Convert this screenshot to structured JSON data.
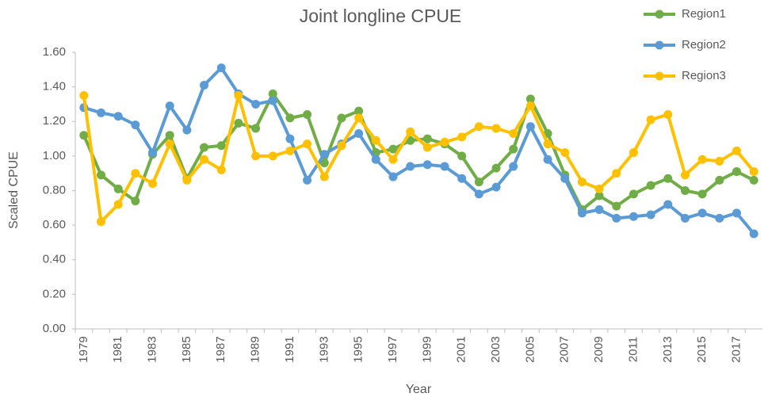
{
  "chart_data": {
    "type": "line",
    "title": "Joint longline CPUE",
    "x_label": "Year",
    "y_label": "Scaled CPUE",
    "categories": [
      "1979",
      null,
      "1981",
      null,
      "1983",
      null,
      "1985",
      null,
      "1987",
      null,
      "1989",
      null,
      "1991",
      null,
      "1993",
      null,
      "1995",
      null,
      "1997",
      null,
      "1999",
      null,
      "2001",
      null,
      "2003",
      null,
      "2005",
      null,
      "2007",
      null,
      "2009",
      null,
      "2011",
      null,
      "2013",
      null,
      "2015",
      null,
      "2017",
      null
    ],
    "series": [
      {
        "name": "Region1",
        "color": "#70ad47",
        "values": [
          1.12,
          0.89,
          0.81,
          0.74,
          1.01,
          1.12,
          0.87,
          1.05,
          1.06,
          1.19,
          1.16,
          1.36,
          1.22,
          1.24,
          0.96,
          1.22,
          1.26,
          1.02,
          1.04,
          1.09,
          1.1,
          1.07,
          1.0,
          0.85,
          0.93,
          1.04,
          1.33,
          1.13,
          0.89,
          0.69,
          0.77,
          0.71,
          0.78,
          0.83,
          0.87,
          0.8,
          0.78,
          0.86,
          0.91,
          0.86
        ]
      },
      {
        "name": "Region2",
        "color": "#5b9bd5",
        "values": [
          1.28,
          1.25,
          1.23,
          1.18,
          1.02,
          1.29,
          1.15,
          1.41,
          1.51,
          1.36,
          1.3,
          1.32,
          1.1,
          0.86,
          1.01,
          1.07,
          1.13,
          0.98,
          0.88,
          0.94,
          0.95,
          0.94,
          0.87,
          0.78,
          0.82,
          0.94,
          1.17,
          0.98,
          0.87,
          0.67,
          0.69,
          0.64,
          0.65,
          0.66,
          0.72,
          0.64,
          0.67,
          0.64,
          0.67,
          0.55
        ]
      },
      {
        "name": "Region3",
        "color": "#ffc000",
        "values": [
          1.35,
          0.62,
          0.72,
          0.9,
          0.84,
          1.07,
          0.86,
          0.98,
          0.92,
          1.35,
          1.0,
          1.0,
          1.03,
          1.07,
          0.88,
          1.06,
          1.22,
          1.09,
          0.98,
          1.14,
          1.05,
          1.08,
          1.11,
          1.17,
          1.16,
          1.13,
          1.29,
          1.07,
          1.02,
          0.85,
          0.81,
          0.9,
          1.02,
          1.21,
          1.24,
          0.89,
          0.98,
          0.97,
          1.03,
          0.91
        ]
      }
    ],
    "ylim": [
      0,
      1.6
    ],
    "yticks": [
      {
        "value": 0,
        "label": "0.00"
      },
      {
        "value": 0.2,
        "label": "0.20"
      },
      {
        "value": 0.4,
        "label": "0.40"
      },
      {
        "value": 0.6,
        "label": "0.60"
      },
      {
        "value": 0.8,
        "label": "0.80"
      },
      {
        "value": 1.0,
        "label": "1.00"
      },
      {
        "value": 1.2,
        "label": "1.20"
      },
      {
        "value": 1.4,
        "label": "1.40"
      },
      {
        "value": 1.6,
        "label": "1.60"
      }
    ],
    "legend": "top-right"
  }
}
